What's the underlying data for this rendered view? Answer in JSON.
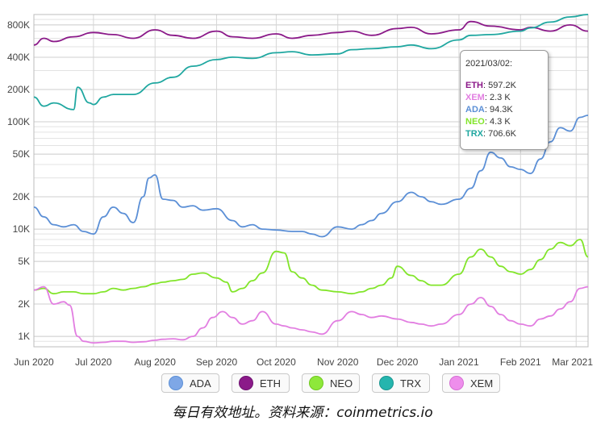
{
  "chart_data": {
    "type": "line",
    "ylabel": "",
    "xlabel": "",
    "yscale": "log",
    "ylim": [
      800,
      1000000
    ],
    "y_ticks": [
      {
        "value": 1000,
        "label": "1K"
      },
      {
        "value": 2000,
        "label": "2K"
      },
      {
        "value": 5000,
        "label": "5K"
      },
      {
        "value": 10000,
        "label": "10K"
      },
      {
        "value": 20000,
        "label": "20K"
      },
      {
        "value": 50000,
        "label": "50K"
      },
      {
        "value": 100000,
        "label": "100K"
      },
      {
        "value": 200000,
        "label": "200K"
      },
      {
        "value": 400000,
        "label": "400K"
      },
      {
        "value": 800000,
        "label": "800K"
      }
    ],
    "x_ticks": [
      "Jun 2020",
      "Jul 2020",
      "Aug 2020",
      "Sep 2020",
      "Oct 2020",
      "Nov 2020",
      "Dec 2020",
      "Jan 2021",
      "Feb 2021",
      "Mar 2021"
    ],
    "x_tick_positions": [
      0,
      30,
      61,
      92,
      122,
      153,
      183,
      214,
      245,
      273
    ],
    "x_range": [
      0,
      279
    ],
    "grid": true,
    "legend_position": "bottom",
    "series": [
      {
        "name": "ETH",
        "color": "#8b1a89",
        "x": [
          0,
          5,
          10,
          20,
          30,
          40,
          50,
          61,
          70,
          80,
          92,
          100,
          110,
          122,
          130,
          140,
          153,
          160,
          170,
          183,
          190,
          200,
          214,
          220,
          230,
          245,
          250,
          260,
          270,
          279
        ],
        "y": [
          520000,
          600000,
          560000,
          620000,
          680000,
          650000,
          600000,
          720000,
          640000,
          600000,
          700000,
          620000,
          600000,
          660000,
          600000,
          640000,
          680000,
          700000,
          640000,
          740000,
          760000,
          660000,
          720000,
          860000,
          780000,
          720000,
          760000,
          700000,
          800000,
          700000
        ]
      },
      {
        "name": "TRX",
        "color": "#1fa7a0",
        "x": [
          0,
          5,
          10,
          20,
          22,
          28,
          30,
          35,
          40,
          50,
          61,
          70,
          80,
          92,
          100,
          110,
          122,
          130,
          140,
          153,
          160,
          170,
          183,
          190,
          200,
          214,
          220,
          230,
          245,
          250,
          260,
          270,
          279
        ],
        "y": [
          170000,
          140000,
          150000,
          130000,
          210000,
          150000,
          145000,
          170000,
          180000,
          180000,
          230000,
          260000,
          330000,
          380000,
          400000,
          390000,
          440000,
          450000,
          420000,
          430000,
          470000,
          480000,
          500000,
          520000,
          480000,
          580000,
          640000,
          650000,
          700000,
          750000,
          850000,
          950000,
          1000000
        ]
      },
      {
        "name": "ADA",
        "color": "#5b8fd6",
        "x": [
          0,
          5,
          10,
          15,
          20,
          25,
          30,
          35,
          40,
          45,
          50,
          55,
          58,
          61,
          65,
          70,
          75,
          80,
          85,
          92,
          100,
          105,
          110,
          115,
          122,
          130,
          135,
          140,
          145,
          153,
          160,
          165,
          170,
          175,
          183,
          190,
          195,
          200,
          205,
          214,
          220,
          225,
          230,
          235,
          240,
          245,
          250,
          255,
          260,
          265,
          270,
          275,
          279
        ],
        "y": [
          16000,
          13000,
          11000,
          10500,
          11000,
          9500,
          9000,
          13000,
          16000,
          14000,
          11500,
          20000,
          30000,
          32000,
          19000,
          18500,
          16000,
          16500,
          15000,
          15500,
          12000,
          10500,
          11000,
          10000,
          9800,
          9500,
          9500,
          9000,
          8500,
          10500,
          10000,
          11000,
          12000,
          14000,
          18000,
          22000,
          20000,
          18000,
          17000,
          19000,
          24000,
          35000,
          52000,
          46000,
          38000,
          36000,
          33000,
          45000,
          65000,
          88000,
          82000,
          110000,
          115000
        ]
      },
      {
        "name": "NEO",
        "color": "#82e52a",
        "x": [
          0,
          5,
          10,
          15,
          20,
          25,
          30,
          35,
          40,
          45,
          50,
          55,
          61,
          65,
          70,
          75,
          80,
          85,
          92,
          97,
          100,
          105,
          110,
          115,
          122,
          126,
          130,
          135,
          140,
          145,
          153,
          160,
          165,
          170,
          175,
          180,
          183,
          190,
          195,
          200,
          205,
          214,
          220,
          225,
          230,
          235,
          240,
          245,
          250,
          255,
          260,
          265,
          270,
          275,
          279
        ],
        "y": [
          2700,
          2800,
          2500,
          2600,
          2600,
          2500,
          2500,
          2600,
          2800,
          2700,
          2800,
          2900,
          3100,
          3200,
          3300,
          3400,
          3800,
          3900,
          3500,
          3200,
          2600,
          2800,
          3300,
          3900,
          6200,
          6000,
          4000,
          3500,
          3000,
          2700,
          2600,
          2500,
          2600,
          2800,
          3000,
          3500,
          4500,
          3700,
          3300,
          3000,
          3000,
          3800,
          5500,
          6500,
          5500,
          4500,
          4000,
          3800,
          4200,
          5200,
          6500,
          7500,
          7000,
          8000,
          5500
        ]
      },
      {
        "name": "XEM",
        "color": "#e27ee1",
        "x": [
          0,
          5,
          10,
          15,
          18,
          22,
          25,
          30,
          35,
          40,
          45,
          50,
          55,
          61,
          65,
          70,
          75,
          80,
          85,
          90,
          95,
          100,
          105,
          110,
          115,
          122,
          126,
          130,
          135,
          140,
          145,
          153,
          160,
          165,
          170,
          175,
          183,
          190,
          195,
          200,
          205,
          214,
          220,
          225,
          230,
          235,
          240,
          245,
          250,
          255,
          260,
          265,
          270,
          275,
          279
        ],
        "y": [
          2700,
          2900,
          2000,
          2100,
          1950,
          1000,
          900,
          870,
          880,
          900,
          900,
          880,
          890,
          920,
          940,
          950,
          930,
          1000,
          1200,
          1500,
          1700,
          1500,
          1300,
          1400,
          1700,
          1300,
          1250,
          1200,
          1150,
          1100,
          1050,
          1400,
          1700,
          1600,
          1500,
          1550,
          1450,
          1350,
          1300,
          1250,
          1300,
          1600,
          2000,
          2300,
          1900,
          1600,
          1400,
          1300,
          1250,
          1450,
          1550,
          1800,
          2100,
          2800,
          2900
        ]
      }
    ]
  },
  "tooltip": {
    "date": "2021/03/02:",
    "rows": [
      {
        "key": "ETH",
        "value": "597.2K",
        "color": "#8b1a89"
      },
      {
        "key": "XEM",
        "value": "2.3 K",
        "color": "#e27ee1"
      },
      {
        "key": "ADA",
        "value": "94.3K",
        "color": "#5b8fd6"
      },
      {
        "key": "NEO",
        "value": "4.3 K",
        "color": "#82e52a"
      },
      {
        "key": "TRX",
        "value": "706.6K",
        "color": "#1fa7a0"
      }
    ]
  },
  "legend": [
    {
      "label": "ADA",
      "color": "#5b8fd6"
    },
    {
      "label": "ETH",
      "color": "#8b1a89"
    },
    {
      "label": "NEO",
      "color": "#82e52a"
    },
    {
      "label": "TRX",
      "color": "#1fa7a0"
    },
    {
      "label": "XEM",
      "color": "#e27ee1"
    }
  ],
  "caption": "每日有效地址。资料来源：coinmetrics.io"
}
